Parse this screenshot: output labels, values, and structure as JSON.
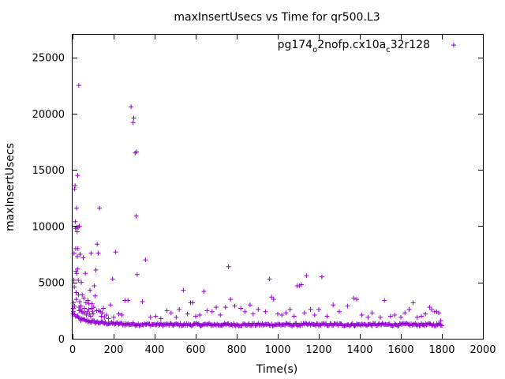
{
  "chart_data": {
    "type": "scatter",
    "title": "maxInsertUsecs vs Time for qr500.L3",
    "xlabel": "Time(s)",
    "ylabel": "maxInsertUsecs",
    "xlim": [
      0,
      2000
    ],
    "ylim": [
      0,
      27000
    ],
    "xticks": [
      0,
      200,
      400,
      600,
      800,
      1000,
      1200,
      1400,
      1600,
      1800,
      2000
    ],
    "yticks": [
      0,
      5000,
      10000,
      15000,
      20000,
      25000
    ],
    "xtick_labels": [
      "0",
      "200",
      "400",
      "600",
      "800",
      "1000",
      "1200",
      "1400",
      "1600",
      "1800",
      "2000"
    ],
    "ytick_labels": [
      "0",
      "5000",
      "10000",
      "15000",
      "20000",
      "25000"
    ],
    "grid": false,
    "legend_position": "top-right",
    "marker": "plus",
    "series": [
      {
        "legend": {
          "base1": "pg174",
          "sub1": "o",
          "base2": "2nofp.cx10a",
          "sub2": "c",
          "base3": "32r128"
        },
        "color": "#9400d3",
        "baseline": {
          "x_start": 10,
          "x_end": 1800,
          "step": 5,
          "profile": [
            [
              10,
              2100
            ],
            [
              40,
              1700
            ],
            [
              80,
              1550
            ],
            [
              150,
              1400
            ],
            [
              250,
              1300
            ],
            [
              450,
              1250
            ],
            [
              1800,
              1250
            ]
          ],
          "jitter": 250
        },
        "points": [
          [
            2,
            2200
          ],
          [
            3,
            2700
          ],
          [
            4,
            2400
          ],
          [
            5,
            3200
          ],
          [
            6,
            5200
          ],
          [
            7,
            7600
          ],
          [
            8,
            4600
          ],
          [
            9,
            2900
          ],
          [
            10,
            13300
          ],
          [
            12,
            13600
          ],
          [
            13,
            10400
          ],
          [
            14,
            9800
          ],
          [
            15,
            8000
          ],
          [
            16,
            6000
          ],
          [
            17,
            4100
          ],
          [
            18,
            3500
          ],
          [
            19,
            11600
          ],
          [
            20,
            5800
          ],
          [
            21,
            9900
          ],
          [
            22,
            9500
          ],
          [
            23,
            7300
          ],
          [
            24,
            6200
          ],
          [
            25,
            14500
          ],
          [
            26,
            8000
          ],
          [
            27,
            9900
          ],
          [
            28,
            5200
          ],
          [
            29,
            3900
          ],
          [
            30,
            22500
          ],
          [
            31,
            2800
          ],
          [
            32,
            2500
          ],
          [
            33,
            10000
          ],
          [
            35,
            3300
          ],
          [
            37,
            7500
          ],
          [
            39,
            2600
          ],
          [
            41,
            2900
          ],
          [
            43,
            5000
          ],
          [
            45,
            2400
          ],
          [
            47,
            3900
          ],
          [
            50,
            2300
          ],
          [
            52,
            7200
          ],
          [
            55,
            3600
          ],
          [
            58,
            2700
          ],
          [
            60,
            2300
          ],
          [
            62,
            5800
          ],
          [
            65,
            3200
          ],
          [
            68,
            2100
          ],
          [
            72,
            2400
          ],
          [
            75,
            3400
          ],
          [
            78,
            2600
          ],
          [
            80,
            3100
          ],
          [
            82,
            2200
          ],
          [
            85,
            4300
          ],
          [
            88,
            2000
          ],
          [
            90,
            7600
          ],
          [
            92,
            2700
          ],
          [
            95,
            3100
          ],
          [
            98,
            2400
          ],
          [
            100,
            2200
          ],
          [
            103,
            2800
          ],
          [
            106,
            4700
          ],
          [
            110,
            3800
          ],
          [
            113,
            6100
          ],
          [
            117,
            2500
          ],
          [
            120,
            8400
          ],
          [
            125,
            7600
          ],
          [
            128,
            2500
          ],
          [
            131,
            11600
          ],
          [
            135,
            2400
          ],
          [
            140,
            2000
          ],
          [
            145,
            2300
          ],
          [
            150,
            2700
          ],
          [
            155,
            1900
          ],
          [
            165,
            2100
          ],
          [
            175,
            1800
          ],
          [
            185,
            3000
          ],
          [
            195,
            5300
          ],
          [
            200,
            1900
          ],
          [
            210,
            7700
          ],
          [
            225,
            2200
          ],
          [
            240,
            2100
          ],
          [
            255,
            3400
          ],
          [
            270,
            3400
          ],
          [
            285,
            20600
          ],
          [
            295,
            19200
          ],
          [
            298,
            19600
          ],
          [
            305,
            16500
          ],
          [
            310,
            10900
          ],
          [
            312,
            16600
          ],
          [
            315,
            5700
          ],
          [
            340,
            3300
          ],
          [
            355,
            7000
          ],
          [
            380,
            1900
          ],
          [
            405,
            2000
          ],
          [
            430,
            1800
          ],
          [
            460,
            2500
          ],
          [
            480,
            2300
          ],
          [
            505,
            1900
          ],
          [
            520,
            2600
          ],
          [
            540,
            4300
          ],
          [
            560,
            2200
          ],
          [
            575,
            3200
          ],
          [
            585,
            3200
          ],
          [
            600,
            2000
          ],
          [
            620,
            2100
          ],
          [
            640,
            4200
          ],
          [
            655,
            2500
          ],
          [
            680,
            2400
          ],
          [
            700,
            2800
          ],
          [
            720,
            2100
          ],
          [
            745,
            2800
          ],
          [
            760,
            6400
          ],
          [
            770,
            3500
          ],
          [
            790,
            2900
          ],
          [
            820,
            2700
          ],
          [
            840,
            2400
          ],
          [
            865,
            3000
          ],
          [
            880,
            2200
          ],
          [
            905,
            2600
          ],
          [
            940,
            2400
          ],
          [
            960,
            5300
          ],
          [
            970,
            3700
          ],
          [
            980,
            3500
          ],
          [
            1000,
            2200
          ],
          [
            1020,
            2100
          ],
          [
            1040,
            2300
          ],
          [
            1060,
            2600
          ],
          [
            1080,
            2000
          ],
          [
            1095,
            4700
          ],
          [
            1105,
            4700
          ],
          [
            1115,
            4800
          ],
          [
            1130,
            2300
          ],
          [
            1140,
            5600
          ],
          [
            1160,
            2600
          ],
          [
            1180,
            2100
          ],
          [
            1200,
            2600
          ],
          [
            1215,
            5500
          ],
          [
            1240,
            2000
          ],
          [
            1270,
            3000
          ],
          [
            1300,
            2400
          ],
          [
            1340,
            2900
          ],
          [
            1370,
            3600
          ],
          [
            1385,
            3500
          ],
          [
            1410,
            2100
          ],
          [
            1440,
            1900
          ],
          [
            1460,
            2300
          ],
          [
            1500,
            1900
          ],
          [
            1520,
            3400
          ],
          [
            1550,
            2000
          ],
          [
            1570,
            2100
          ],
          [
            1600,
            1900
          ],
          [
            1620,
            2300
          ],
          [
            1640,
            2600
          ],
          [
            1660,
            3200
          ],
          [
            1680,
            1900
          ],
          [
            1700,
            2000
          ],
          [
            1720,
            2200
          ],
          [
            1740,
            2800
          ],
          [
            1750,
            2600
          ],
          [
            1765,
            2400
          ],
          [
            1775,
            2400
          ],
          [
            1785,
            2300
          ],
          [
            1795,
            1600
          ]
        ]
      }
    ]
  }
}
